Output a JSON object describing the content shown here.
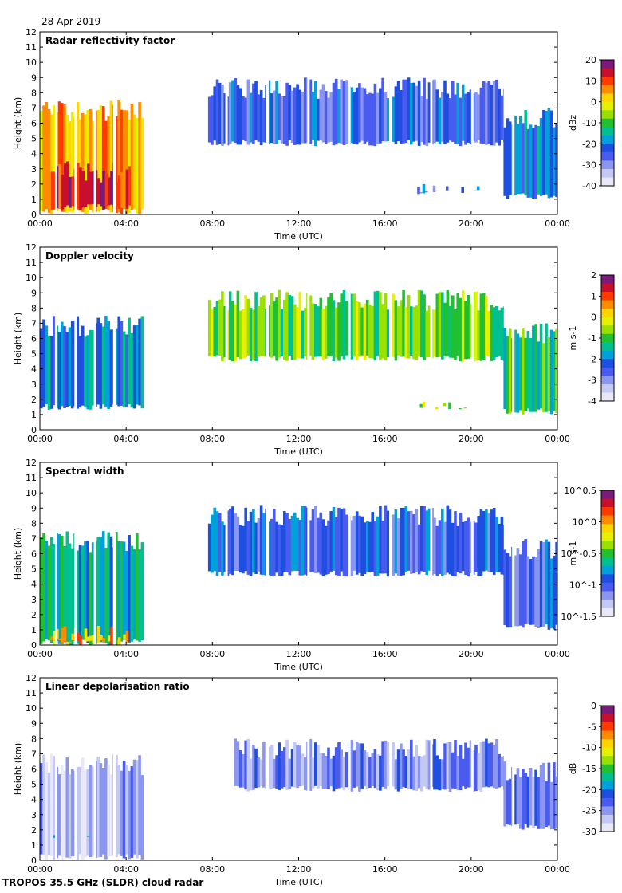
{
  "header": {
    "date": "28 Apr 2019"
  },
  "footer": {
    "instrument": "TROPOS 35.5 GHz (SLDR) cloud radar"
  },
  "colors": {
    "colormap": [
      "#7a1a7a",
      "#c8102e",
      "#ff3a00",
      "#ff8c00",
      "#ffd400",
      "#e6f000",
      "#9ae000",
      "#20c030",
      "#00c090",
      "#00a0d8",
      "#1f4fe0",
      "#4a5cf0",
      "#8a96f0",
      "#c4c8f4",
      "#e8e8f8"
    ],
    "no_data": "#d8d8d8"
  },
  "chart_data": [
    {
      "type": "heatmap",
      "title": "Radar reflectivity factor",
      "xlabel": "Time (UTC)",
      "ylabel": "Height (km)",
      "xticks": [
        "00:00",
        "04:00",
        "08:00",
        "12:00",
        "16:00",
        "20:00",
        "00:00"
      ],
      "yticks": [
        "0",
        "1",
        "2",
        "3",
        "4",
        "5",
        "6",
        "7",
        "8",
        "9",
        "10",
        "11",
        "12"
      ],
      "xlim": [
        0,
        24
      ],
      "ylim": [
        0,
        12
      ],
      "colorbar": {
        "label": "dBz",
        "range": [
          -40,
          20
        ],
        "ticks": [
          "20",
          "10",
          "0",
          "-10",
          "-20",
          "-30",
          "-40"
        ]
      },
      "cloud_features": [
        {
          "t0": 0,
          "t1": 4.8,
          "base": 0,
          "top": 7.5,
          "value": 5
        },
        {
          "t0": 0.5,
          "t1": 4.2,
          "base": 0.3,
          "top": 3.5,
          "value": 15
        },
        {
          "t0": 7.8,
          "t1": 21.5,
          "base": 4.5,
          "top": 9.0,
          "value": -25
        },
        {
          "t0": 21.5,
          "t1": 24,
          "base": 1.0,
          "top": 7.0,
          "value": -20
        },
        {
          "t0": 17.5,
          "t1": 20.5,
          "base": 1.3,
          "top": 2.0,
          "value": -25
        }
      ]
    },
    {
      "type": "heatmap",
      "title": "Doppler velocity",
      "xlabel": "Time (UTC)",
      "ylabel": "Height (km)",
      "xticks": [
        "00:00",
        "04:00",
        "08:00",
        "12:00",
        "16:00",
        "20:00",
        "00:00"
      ],
      "yticks": [
        "0",
        "1",
        "2",
        "3",
        "4",
        "5",
        "6",
        "7",
        "8",
        "9",
        "10",
        "11",
        "12"
      ],
      "xlim": [
        0,
        24
      ],
      "ylim": [
        0,
        12
      ],
      "colorbar": {
        "label": "m s-1",
        "range": [
          -4,
          2
        ],
        "ticks": [
          "2",
          "1",
          "0",
          "-1",
          "-2",
          "-3",
          "-4"
        ]
      },
      "cloud_features": [
        {
          "t0": 0,
          "t1": 4.8,
          "base": 1.3,
          "top": 7.5,
          "value": -2.0
        },
        {
          "t0": 7.8,
          "t1": 21.5,
          "base": 4.5,
          "top": 9.2,
          "value": -0.8
        },
        {
          "t0": 21.5,
          "t1": 24,
          "base": 1.0,
          "top": 7.0,
          "value": -1.2
        },
        {
          "t0": 17.5,
          "t1": 20.5,
          "base": 1.3,
          "top": 2.0,
          "value": -0.5
        }
      ]
    },
    {
      "type": "heatmap",
      "title": "Spectral width",
      "xlabel": "Time (UTC)",
      "ylabel": "Height (km)",
      "xticks": [
        "00:00",
        "04:00",
        "08:00",
        "12:00",
        "16:00",
        "20:00",
        "00:00"
      ],
      "yticks": [
        "0",
        "1",
        "2",
        "3",
        "4",
        "5",
        "6",
        "7",
        "8",
        "9",
        "10",
        "11",
        "12"
      ],
      "xlim": [
        0,
        24
      ],
      "ylim": [
        0,
        12
      ],
      "colorbar": {
        "label": "m s-1",
        "scale": "log",
        "range": [
          -1.5,
          0.5
        ],
        "ticks": [
          "10^0.5",
          "10^0",
          "10^-0.5",
          "10^-1",
          "10^-1.5"
        ]
      },
      "cloud_features": [
        {
          "t0": 0,
          "t1": 4.8,
          "base": 0,
          "top": 7.5,
          "value": -0.7
        },
        {
          "t0": 0.5,
          "t1": 4.2,
          "base": 0,
          "top": 1.3,
          "value": 0.0
        },
        {
          "t0": 7.8,
          "t1": 21.5,
          "base": 4.5,
          "top": 9.2,
          "value": -1.0
        },
        {
          "t0": 21.5,
          "t1": 24,
          "base": 1.0,
          "top": 7.0,
          "value": -1.0
        }
      ]
    },
    {
      "type": "heatmap",
      "title": "Linear depolarisation ratio",
      "xlabel": "Time (UTC)",
      "ylabel": "Height (km)",
      "xticks": [
        "00:00",
        "04:00",
        "08:00",
        "12:00",
        "16:00",
        "20:00",
        "00:00"
      ],
      "yticks": [
        "0",
        "1",
        "2",
        "3",
        "4",
        "5",
        "6",
        "7",
        "8",
        "9",
        "10",
        "11",
        "12"
      ],
      "xlim": [
        0,
        24
      ],
      "ylim": [
        0,
        12
      ],
      "colorbar": {
        "label": "dB",
        "range": [
          -30,
          0
        ],
        "ticks": [
          "0",
          "-5",
          "-10",
          "-15",
          "-20",
          "-25",
          "-30"
        ]
      },
      "cloud_features": [
        {
          "t0": 0,
          "t1": 4.8,
          "base": 0,
          "top": 7.0,
          "value": -27
        },
        {
          "t0": 0.5,
          "t1": 4.2,
          "base": 1.4,
          "top": 1.7,
          "value": -18
        },
        {
          "t0": 9.0,
          "t1": 21.5,
          "base": 4.5,
          "top": 8.0,
          "value": -25
        },
        {
          "t0": 21.5,
          "t1": 24,
          "base": 2.0,
          "top": 6.5,
          "value": -24
        }
      ]
    }
  ]
}
